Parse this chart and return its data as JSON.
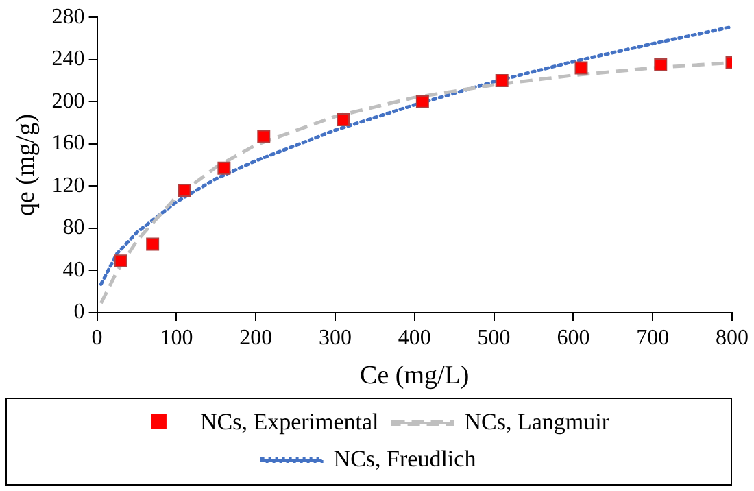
{
  "chart_data": {
    "type": "scatter",
    "xlabel": "Ce (mg/L)",
    "ylabel": "qe (mg/g)",
    "xlim": [
      0,
      800
    ],
    "xticks": [
      0,
      100,
      200,
      300,
      400,
      500,
      600,
      700,
      800
    ],
    "ylim": [
      0,
      280
    ],
    "yticks": [
      0,
      40,
      80,
      120,
      160,
      200,
      240,
      280
    ],
    "grid": false,
    "legend": "bottom",
    "series": [
      {
        "name": "NCs, Experimental",
        "marker": "square",
        "color": "#ff0000",
        "x": [
          30,
          70,
          110,
          160,
          210,
          310,
          410,
          510,
          610,
          710,
          800
        ],
        "values": [
          49,
          65,
          116,
          137,
          167,
          183,
          200,
          220,
          232,
          235,
          237
        ]
      },
      {
        "name": "NCs, Langmuir",
        "type": "line",
        "line_style": "dashed",
        "marker": "none",
        "color": "#bfbfbf",
        "x": [
          5,
          25,
          50,
          100,
          150,
          200,
          300,
          400,
          500,
          600,
          700,
          800
        ],
        "values": [
          9,
          39,
          68,
          110,
          138,
          159,
          186,
          204,
          216,
          225,
          232,
          237
        ]
      },
      {
        "name": "NCs, Freudlich",
        "type": "line",
        "line_style": "dotted",
        "marker": "none",
        "color": "#4472c4",
        "x": [
          5,
          25,
          50,
          100,
          150,
          200,
          300,
          400,
          500,
          600,
          700,
          800
        ],
        "values": [
          27,
          56,
          76,
          105,
          127,
          144,
          173,
          197,
          219,
          238,
          255,
          271
        ]
      }
    ]
  }
}
